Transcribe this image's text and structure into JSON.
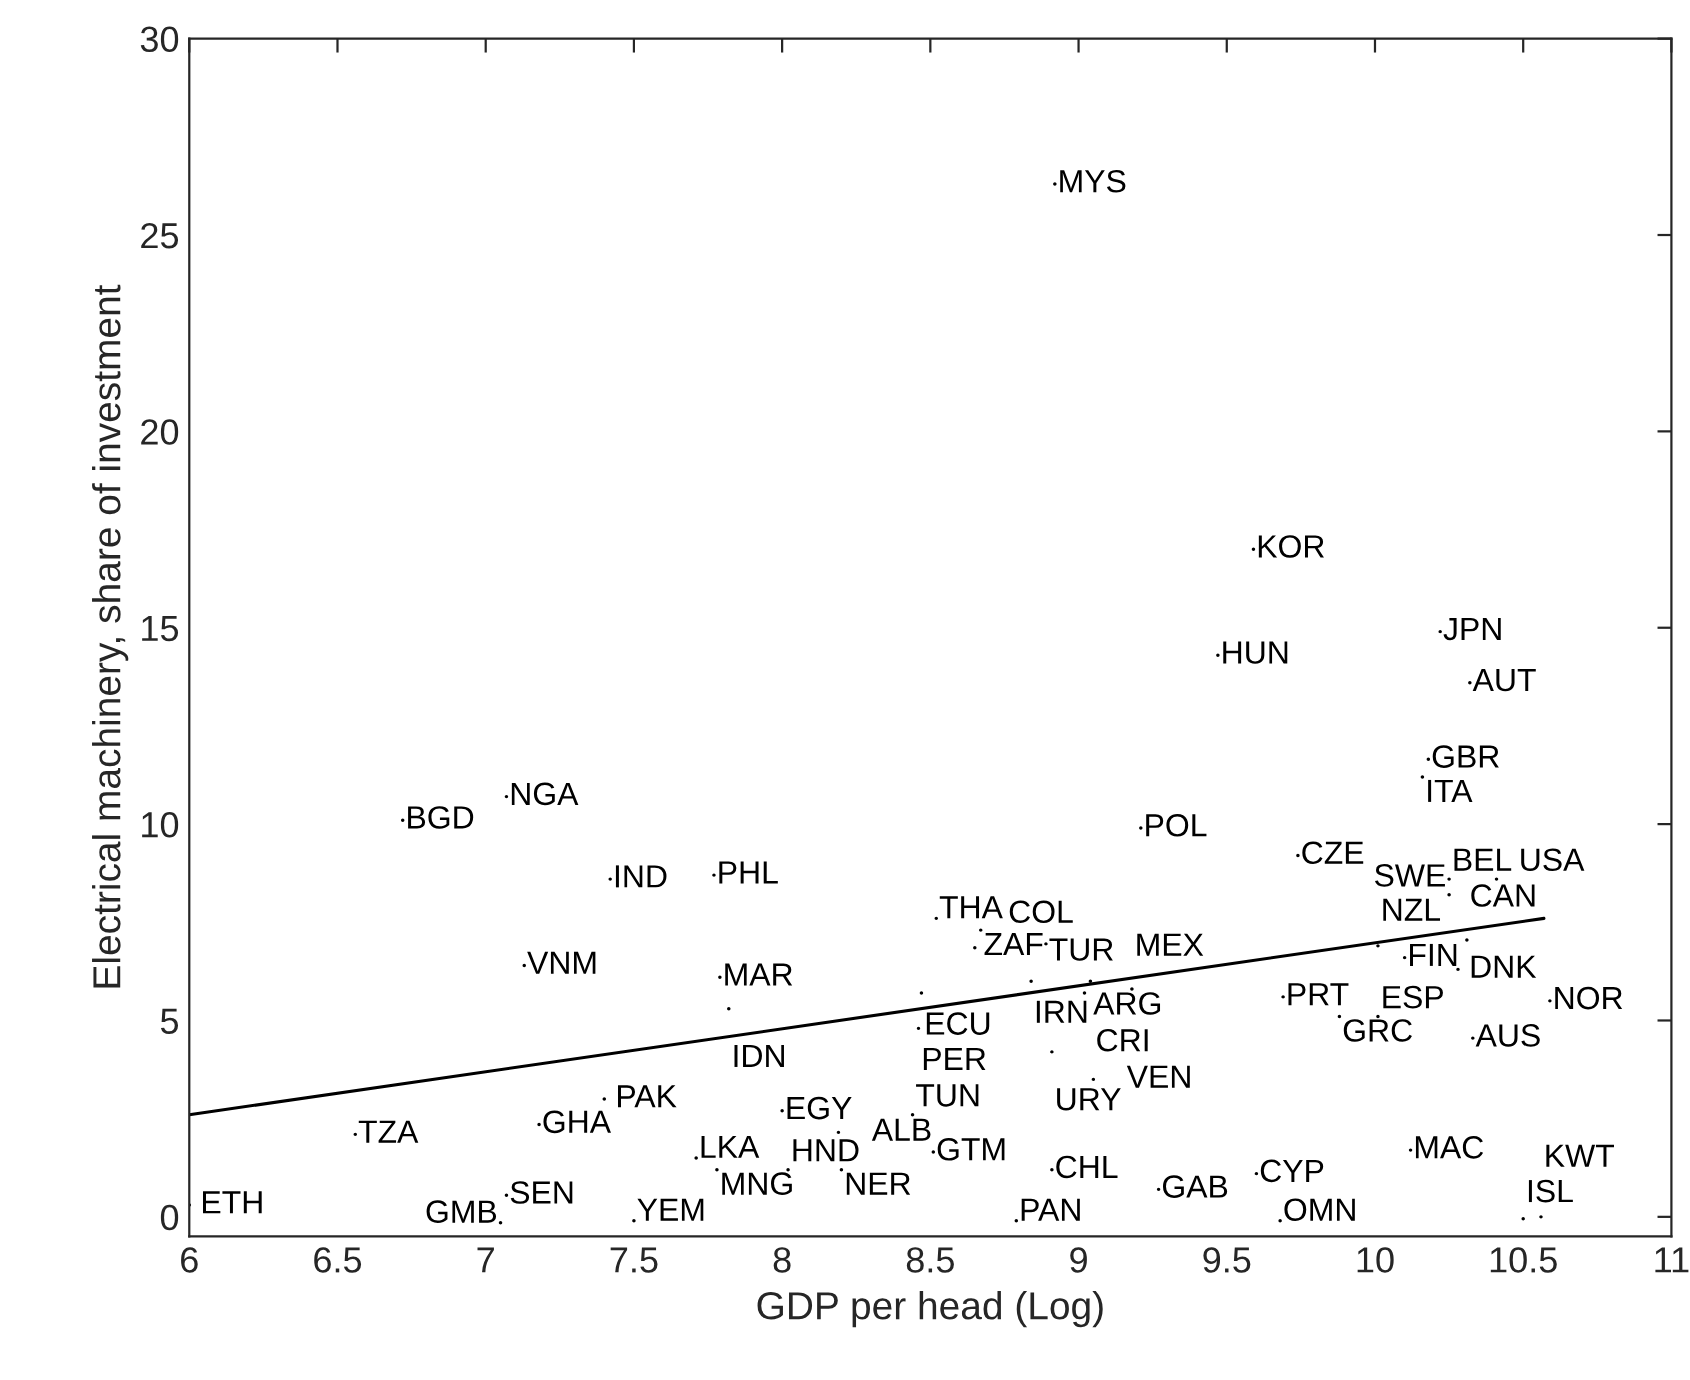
{
  "chart_data": {
    "type": "scatter",
    "xlabel": "GDP per head (Log)",
    "ylabel": "Electrical machinery, share of investment",
    "xlim": [
      6,
      11
    ],
    "ylim": [
      -0.5,
      30
    ],
    "xticks": [
      6,
      6.5,
      7,
      7.5,
      8,
      8.5,
      9,
      9.5,
      10,
      10.5,
      11
    ],
    "yticks": [
      0,
      5,
      10,
      15,
      20,
      25,
      30
    ],
    "grid": false,
    "legend": false,
    "marker": "none",
    "series": [
      {
        "color": "#000000",
        "x": [
          6.0,
          6.56,
          6.72,
          7.07,
          7.13,
          7.18,
          7.07,
          7.05,
          7.4,
          7.42,
          7.77,
          7.5,
          7.79,
          7.82,
          7.71,
          7.78,
          8.02,
          8.2,
          8.0,
          8.19,
          8.44,
          8.51,
          8.52,
          8.67,
          8.65,
          8.89,
          8.47,
          8.46,
          8.84,
          9.04,
          9.02,
          9.18,
          8.91,
          9.05,
          8.91,
          8.79,
          9.27,
          9.6,
          9.68,
          8.92,
          9.59,
          9.47,
          9.21,
          9.74,
          9.69,
          9.88,
          10.01,
          10.01,
          10.1,
          10.28,
          10.31,
          10.25,
          10.41,
          10.25,
          10.59,
          10.33,
          10.12,
          10.5,
          10.56,
          10.18,
          10.16,
          10.22,
          10.32
        ],
        "values": [
          0.3,
          2.1,
          10.1,
          10.7,
          6.4,
          2.35,
          0.55,
          -0.15,
          3.0,
          8.6,
          8.7,
          -0.1,
          6.1,
          5.3,
          1.5,
          1.2,
          1.2,
          1.2,
          2.7,
          2.15,
          2.6,
          1.65,
          7.6,
          7.3,
          6.85,
          6.95,
          5.7,
          4.8,
          6.0,
          6.0,
          5.7,
          5.8,
          4.2,
          3.5,
          1.2,
          -0.1,
          0.7,
          1.1,
          -0.1,
          26.3,
          17.0,
          14.3,
          9.9,
          9.2,
          5.6,
          5.1,
          5.1,
          6.9,
          6.6,
          6.3,
          7.05,
          8.6,
          8.6,
          8.2,
          5.5,
          4.55,
          1.7,
          -0.05,
          0.0,
          11.65,
          11.2,
          14.9,
          13.6
        ],
        "value_labels": [
          "ETH",
          "TZA",
          "BGD",
          "NGA",
          "VNM",
          "GHA",
          "SEN",
          "GMB",
          "PAK",
          "IND",
          "PHL",
          "YEM",
          "MAR",
          "IDN",
          "LKA",
          "MNG",
          "HND",
          "NER",
          "EGY",
          "ALB",
          "TUN",
          "GTM",
          "THA",
          "ZAF",
          "COL",
          "TUR",
          "ECU",
          "PER",
          "IRN",
          "ARG",
          "CRI",
          "MEX",
          "URY",
          "VEN",
          "CHL",
          "PAN",
          "GAB",
          "CYP",
          "OMN",
          "MYS",
          "KOR",
          "HUN",
          "POL",
          "CZE",
          "PRT",
          "GRC",
          "ESP",
          "NZL",
          "FIN",
          "DNK",
          "CAN",
          "BEL",
          "USA",
          "SWE",
          "NOR",
          "AUS",
          "MAC",
          "ISL",
          "KWT",
          "GBR",
          "ITA",
          "JPN",
          "AUT"
        ]
      },
      {
        "type": "line",
        "color": "#000000",
        "line_style": "solid",
        "x": [
          6.0,
          10.57
        ],
        "values": [
          2.6,
          7.6
        ]
      }
    ]
  }
}
